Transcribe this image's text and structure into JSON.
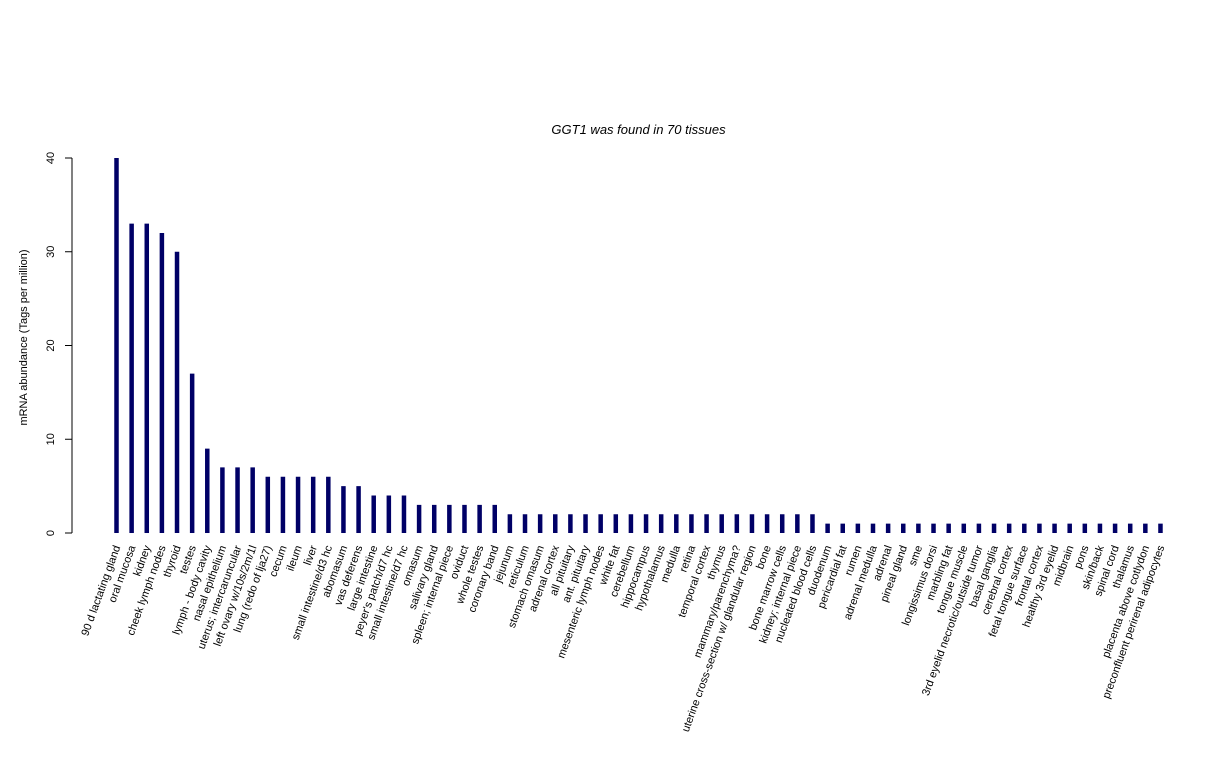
{
  "chart_data": {
    "type": "bar",
    "title": "GGT1  was found in  70  tissues",
    "xlabel": "",
    "ylabel": "mRNA abundance (Tags per million)",
    "ylim": [
      0,
      40
    ],
    "yticks": [
      "0",
      "10",
      "20",
      "30",
      "40"
    ],
    "bar_color": "#000066",
    "categories": [
      "90 d lactating gland",
      "oral mucosa",
      "kidney",
      "cheek lymph nodes",
      "thyroid",
      "testes",
      "lymph - body cavity",
      "nasal epithelium",
      "uterus; intercaruncular",
      "left ovary w/10s/2m/1l",
      "lung (redo of lja27)",
      "cecum",
      "ileum",
      "liver",
      "small intestine/d3 hc",
      "abomasum",
      "vas deferens",
      "large intestine",
      "peyer's patch/d7 hc",
      "small intestine/d7 hc",
      "omasum",
      "salivary gland",
      "spleen; internal piece",
      "oviduct",
      "whole testes",
      "coronary band",
      "jejunum",
      "reticulum",
      "stomach omasum",
      "adrenal cortex",
      "all pituitary",
      "ant. pituitary",
      "mesenteric lymph nodes",
      "white fat",
      "cerebellum",
      "hippocampus",
      "hypothalamus",
      "medulla",
      "retina",
      "temporal cortex",
      "thymus",
      "mammary/parenchyma?",
      "uterine cross-section w/ glandular region",
      "bone",
      "bone marrow cells",
      "kidney; internal piece",
      "nucleated blood cells",
      "duodenum",
      "pericardial fat",
      "rumen",
      "adrenal medulla",
      "adrenal",
      "pineal gland",
      "sme",
      "longissimus dorsi",
      "marbling fat",
      "tongue muscle",
      "3rd eyelid necrotic/outside tumor",
      "basal ganglia",
      "cerebral cortex",
      "fetal tongue surface",
      "frontal cortex",
      "healthy 3rd eyelid",
      "midbrain",
      "pons",
      "skin/back",
      "spinal cord",
      "thalamus",
      "placenta above cotlydon",
      "preconfluent perirenal adipocytes"
    ],
    "values": [
      40,
      33,
      33,
      32,
      30,
      17,
      9,
      7,
      7,
      7,
      6,
      6,
      6,
      6,
      6,
      5,
      5,
      4,
      4,
      4,
      3,
      3,
      3,
      3,
      3,
      3,
      2,
      2,
      2,
      2,
      2,
      2,
      2,
      2,
      2,
      2,
      2,
      2,
      2,
      2,
      2,
      2,
      2,
      2,
      2,
      2,
      2,
      1,
      1,
      1,
      1,
      1,
      1,
      1,
      1,
      1,
      1,
      1,
      1,
      1,
      1,
      1,
      1,
      1,
      1,
      1,
      1,
      1,
      1,
      1
    ]
  }
}
